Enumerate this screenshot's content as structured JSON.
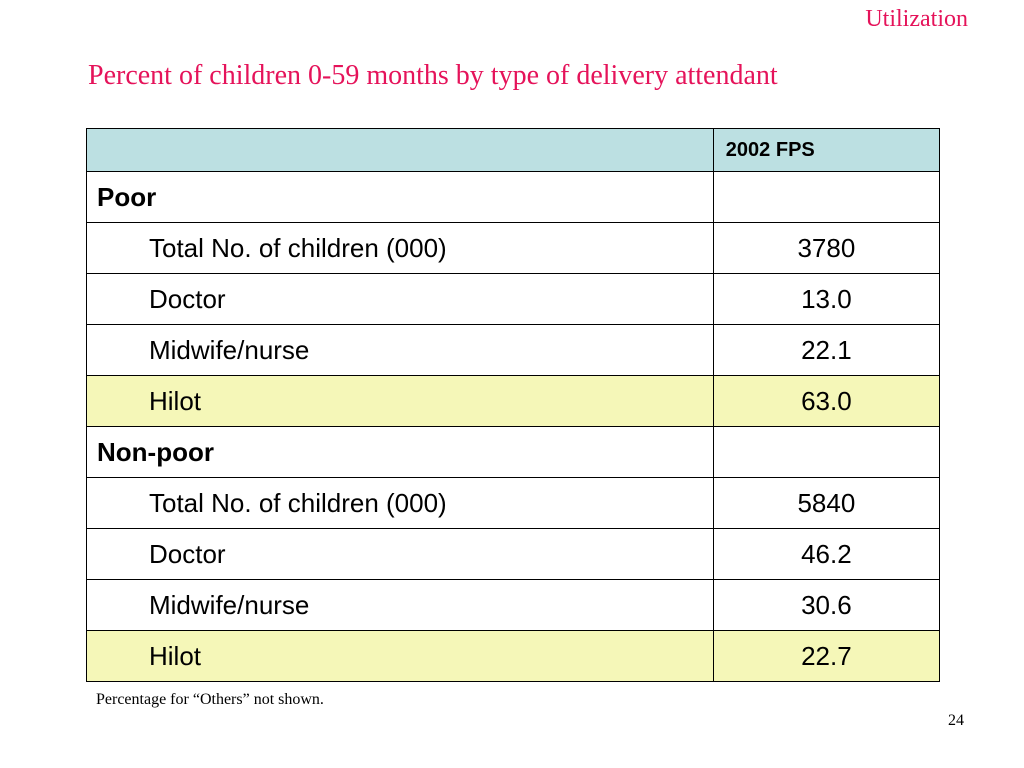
{
  "section_tag": "Utilization",
  "title": "Percent of children 0-59 months by type of delivery attendant",
  "table": {
    "column_header": "2002 FPS",
    "groups": [
      {
        "label": "Poor",
        "rows": [
          {
            "label": "Total No. of children (000)",
            "value": "3780"
          },
          {
            "label": "Doctor",
            "value": "13.0"
          },
          {
            "label": "Midwife/nurse",
            "value": "22.1"
          },
          {
            "label": "Hilot",
            "value": "63.0"
          }
        ]
      },
      {
        "label": "Non-poor",
        "rows": [
          {
            "label": "Total No. of children (000)",
            "value": "5840"
          },
          {
            "label": "Doctor",
            "value": "46.2"
          },
          {
            "label": "Midwife/nurse",
            "value": "30.6"
          },
          {
            "label": "Hilot",
            "value": "22.7"
          }
        ]
      }
    ]
  },
  "colors": {
    "title": "#e5135a",
    "header_fill": "#bce0e2",
    "highlight_fill": "#f5f7b8"
  },
  "footnote": "Percentage for “Others” not shown.",
  "page_number": "24"
}
